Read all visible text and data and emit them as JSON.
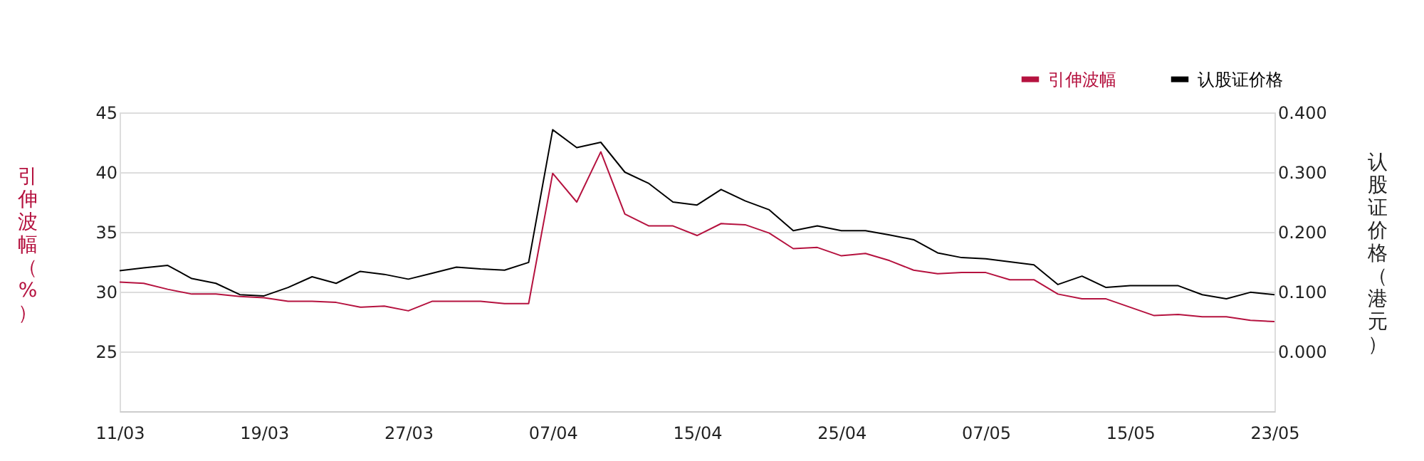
{
  "chart_data": {
    "type": "line",
    "categories": [
      "11/03",
      null,
      null,
      null,
      null,
      null,
      "19/03",
      null,
      null,
      null,
      null,
      null,
      "27/03",
      null,
      null,
      null,
      null,
      null,
      "07/04",
      null,
      null,
      null,
      null,
      null,
      "15/04",
      null,
      null,
      null,
      null,
      null,
      "25/04",
      null,
      null,
      null,
      null,
      null,
      "07/05",
      null,
      null,
      null,
      null,
      null,
      "15/05",
      null,
      null,
      null,
      null,
      null,
      "23/05"
    ],
    "series": [
      {
        "name": "引伸波幅",
        "color": "#b5123f",
        "values": [
          30.8,
          30.7,
          30.2,
          29.8,
          29.8,
          29.6,
          29.5,
          29.2,
          29.2,
          29.1,
          28.7,
          28.8,
          28.4,
          29.2,
          29.2,
          29.2,
          29.0,
          29.0,
          39.9,
          37.5,
          41.7,
          36.5,
          35.5,
          35.5,
          34.7,
          35.7,
          35.6,
          34.9,
          33.6,
          33.7,
          33.0,
          33.2,
          32.6,
          31.8,
          31.5,
          31.6,
          31.6,
          31.0,
          31.0,
          29.8,
          29.4,
          29.4,
          28.7,
          28.0,
          28.1,
          27.9,
          27.9,
          27.6,
          27.5
        ]
      },
      {
        "name": "认股证价格",
        "color": "#000000",
        "axis": "y2",
        "values": [
          0.135,
          0.14,
          0.144,
          0.122,
          0.114,
          0.095,
          0.093,
          0.107,
          0.125,
          0.114,
          0.134,
          0.129,
          0.121,
          0.131,
          0.141,
          0.138,
          0.136,
          0.149,
          0.371,
          0.341,
          0.35,
          0.3,
          0.281,
          0.25,
          0.245,
          0.271,
          0.252,
          0.237,
          0.202,
          0.21,
          0.202,
          0.202,
          0.195,
          0.187,
          0.165,
          0.157,
          0.155,
          0.15,
          0.145,
          0.112,
          0.126,
          0.107,
          0.11,
          0.11,
          0.11,
          0.095,
          0.088,
          0.099,
          0.095
        ]
      }
    ],
    "ylabel": "引伸波幅（%）",
    "y2label": "认股证价格（港元）",
    "ylim": [
      20,
      45
    ],
    "yticks": [
      25,
      30,
      35,
      40,
      45
    ],
    "y2lim": [
      -0.1,
      0.4
    ],
    "y2ticks": [
      {
        "value": 0,
        "label": "0.000"
      },
      {
        "value": 0.1,
        "label": "0.100"
      },
      {
        "value": 0.2,
        "label": "0.200"
      },
      {
        "value": 0.3,
        "label": "0.300"
      },
      {
        "value": 0.4,
        "label": "0.400"
      }
    ],
    "grid": "y",
    "legend": "top right",
    "marker": "none",
    "line_style": "solid"
  }
}
